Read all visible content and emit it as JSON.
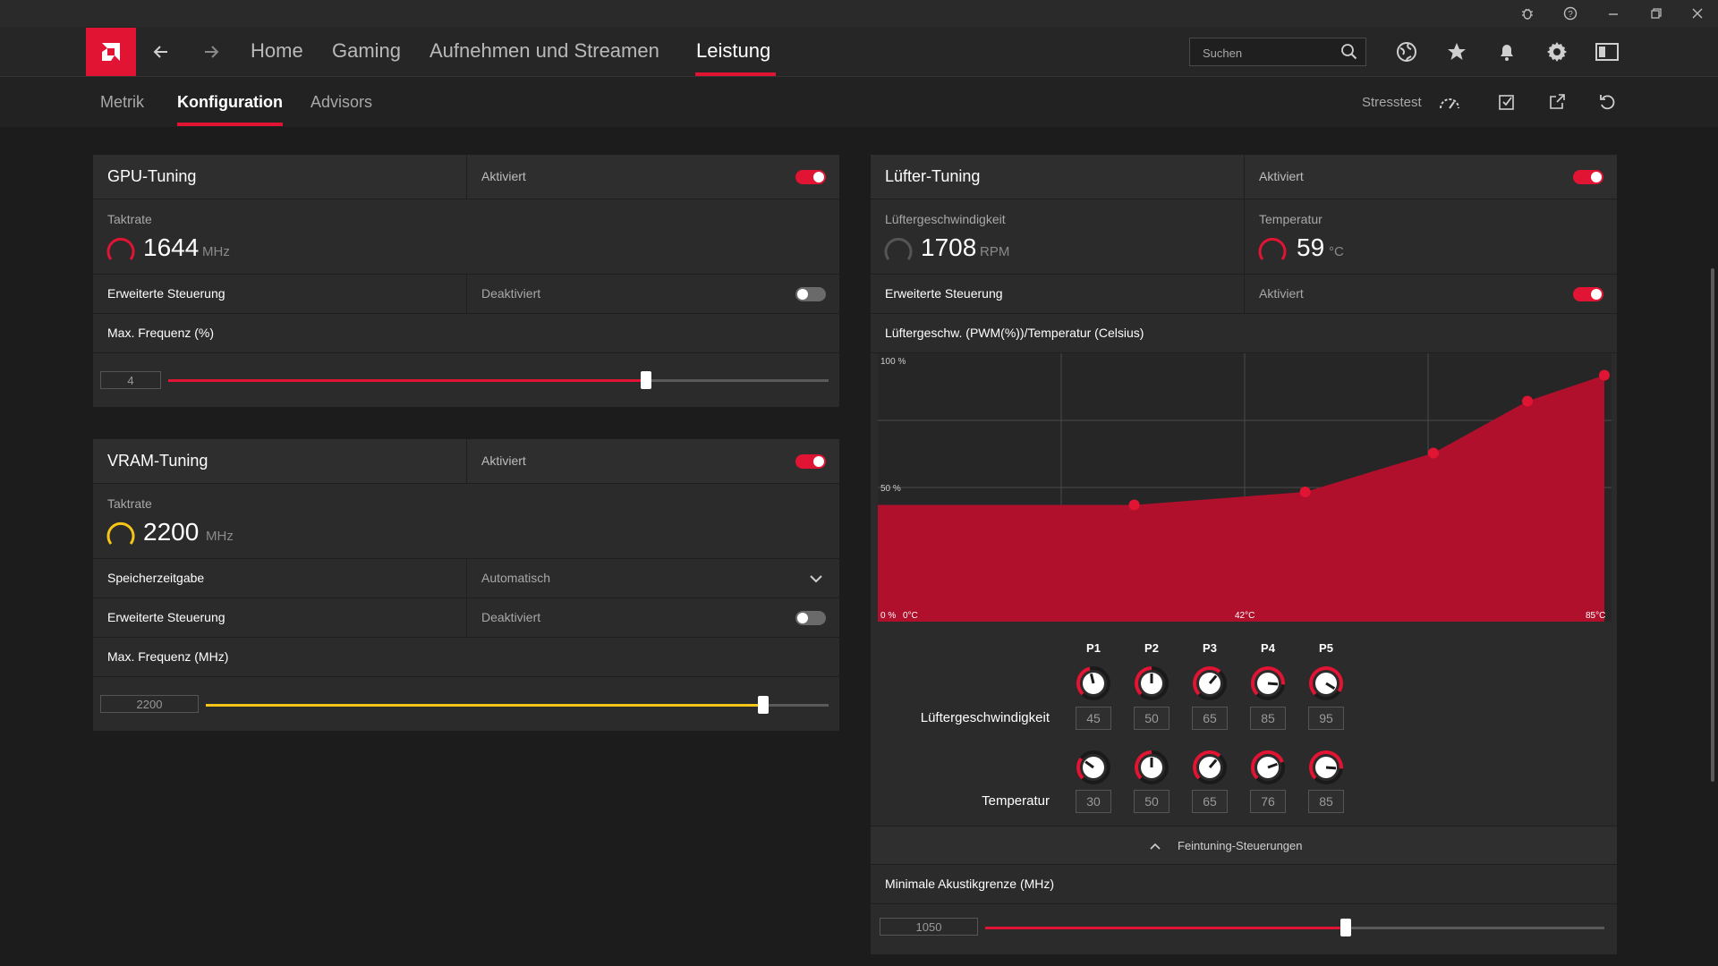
{
  "nav": {
    "tabs": [
      "Home",
      "Gaming",
      "Aufnehmen und Streamen",
      "Leistung"
    ],
    "active_tab": "Leistung",
    "search_placeholder": "Suchen"
  },
  "subnav": {
    "tabs": [
      "Metrik",
      "Konfiguration",
      "Advisors"
    ],
    "active_tab": "Konfiguration",
    "stresstest_label": "Stresstest"
  },
  "colors": {
    "accent": "#e11433",
    "vram_accent": "#f5c518",
    "panel": "#2b2b2b"
  },
  "gpu_tuning": {
    "title": "GPU-Tuning",
    "state": "Aktiviert",
    "enabled": true,
    "clock_label": "Taktrate",
    "clock_value": "1644",
    "clock_unit": "MHz",
    "advanced_label": "Erweiterte Steuerung",
    "advanced_state": "Deaktiviert",
    "advanced_enabled": false,
    "max_freq_label": "Max. Frequenz (%)",
    "max_freq_value": "4",
    "slider_fraction": 0.724
  },
  "vram_tuning": {
    "title": "VRAM-Tuning",
    "state": "Aktiviert",
    "enabled": true,
    "clock_label": "Taktrate",
    "clock_value": "2200",
    "clock_unit": "MHz",
    "memory_timing_label": "Speicherzeitgabe",
    "memory_timing_value": "Automatisch",
    "advanced_label": "Erweiterte Steuerung",
    "advanced_state": "Deaktiviert",
    "advanced_enabled": false,
    "max_freq_label": "Max. Frequenz (MHz)",
    "max_freq_value": "2200",
    "slider_fraction": 0.895
  },
  "fan_tuning": {
    "title": "Lüfter-Tuning",
    "state": "Aktiviert",
    "enabled": true,
    "speed_label": "Lüftergeschwindigkeit",
    "speed_value": "1708",
    "speed_unit": "RPM",
    "temp_label": "Temperatur",
    "temp_value": "59",
    "temp_unit": "°C",
    "advanced_label": "Erweiterte Steuerung",
    "advanced_state": "Aktiviert",
    "advanced_enabled": true,
    "curve_title": "Lüftergeschw. (PWM(%))/Temperatur (Celsius)",
    "points": [
      "P1",
      "P2",
      "P3",
      "P4",
      "P5"
    ],
    "speed_row_label": "Lüftergeschwindigkeit",
    "temp_row_label": "Temperatur",
    "speeds": [
      "45",
      "50",
      "65",
      "85",
      "95"
    ],
    "temps": [
      "30",
      "50",
      "65",
      "76",
      "85"
    ],
    "fine_tuning_label": "Feintuning-Steuerungen",
    "min_acoustic_label": "Minimale Akustikgrenze (MHz)",
    "min_acoustic_value": "1050",
    "min_acoustic_fraction": 0.583
  },
  "chart_data": {
    "type": "area",
    "title": "Lüftergeschw. (PWM(%))/Temperatur (Celsius)",
    "x": [
      0,
      30,
      50,
      65,
      76,
      85
    ],
    "values": [
      45,
      45,
      50,
      65,
      85,
      95
    ],
    "xlim": [
      0,
      85
    ],
    "ylim": [
      0,
      100
    ],
    "y_tick_labels": [
      "100 %",
      "50 %",
      "0 %"
    ],
    "x_tick_labels": [
      "0°C",
      "42°C",
      "85°C"
    ],
    "grid": true
  }
}
